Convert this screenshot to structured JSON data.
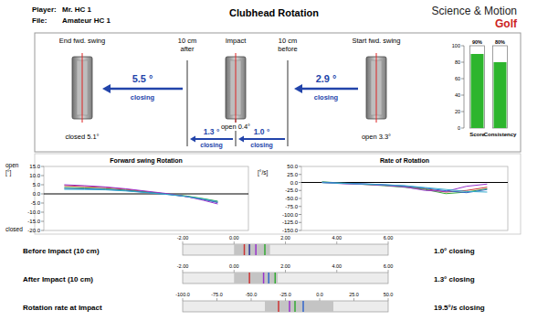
{
  "header": {
    "player_label": "Player:",
    "player": "Mr. HC 1",
    "file_label": "File:",
    "file": "Amateur HC 1",
    "title": "Clubhead Rotation",
    "brand": "Science & Motion",
    "brand_sub": "Golf"
  },
  "rotation_panel": {
    "stages": [
      {
        "label": [
          "End fwd. swing"
        ],
        "state": "closed 5.1°"
      },
      {
        "label": [
          "10 cm",
          "after"
        ]
      },
      {
        "label": [
          "Impact"
        ],
        "state": "open 0.4°"
      },
      {
        "label": [
          "10 cm",
          "before"
        ]
      },
      {
        "label": [
          "Start fwd. swing"
        ],
        "state": "open 3.3°"
      }
    ],
    "arrows": [
      {
        "value": "5.5 °",
        "text": "closing"
      },
      {
        "value": "2.9 °",
        "text": "closing"
      },
      {
        "value": "1.3 °",
        "text": "closing"
      },
      {
        "value": "1.0 °",
        "text": "closing"
      }
    ]
  },
  "chart_data": [
    {
      "type": "bar",
      "categories": [
        "Score",
        "Consistency"
      ],
      "values": [
        90,
        80
      ],
      "value_labels": [
        "90%",
        "80%"
      ],
      "data_labels": true,
      "color": "#2db52d",
      "ylim": [
        0,
        100
      ],
      "yticks": [
        0,
        20,
        40,
        60,
        80,
        100
      ]
    },
    {
      "type": "line",
      "title": "Forward swing Rotation",
      "y_label": "[°]",
      "annotations": [
        "open",
        "closed"
      ],
      "tick_labels": "y",
      "grid": false,
      "x": [
        1,
        2,
        3,
        4,
        5,
        6,
        7,
        7.8,
        8.5
      ],
      "xlim": [
        0,
        10
      ],
      "ylim": [
        -20,
        15
      ],
      "yticks": [
        {
          "value": 15,
          "label": "15.0"
        },
        {
          "value": 10,
          "label": "10.0"
        },
        {
          "value": 5,
          "label": "5.0"
        },
        {
          "value": 0,
          "label": "0.0"
        },
        {
          "value": -5,
          "label": "-5.0"
        },
        {
          "value": -10,
          "label": "-10.0"
        },
        {
          "value": -15,
          "label": "-15.0"
        },
        {
          "value": -20,
          "label": "-20.0"
        }
      ],
      "series": [
        {
          "color": "#cc3333",
          "values": [
            4.5,
            4,
            3.5,
            2.5,
            1.2,
            0,
            -1.5,
            -3,
            -4.5
          ]
        },
        {
          "color": "#33aa33",
          "values": [
            3.5,
            3.2,
            2.8,
            2,
            1,
            0,
            -1.2,
            -2.6,
            -4
          ]
        },
        {
          "color": "#9933cc",
          "values": [
            5,
            4.5,
            3.8,
            2.8,
            1.5,
            0.2,
            -1.5,
            -3.5,
            -5.5
          ]
        },
        {
          "color": "#3366cc",
          "values": [
            3,
            2.8,
            2.5,
            1.8,
            0.8,
            -0.2,
            -1.5,
            -3,
            -4.8
          ]
        },
        {
          "color": "#33aacc",
          "values": [
            2.5,
            2.4,
            2.2,
            1.6,
            0.7,
            -0.3,
            -1.4,
            -2.8,
            -4.2
          ]
        }
      ]
    },
    {
      "type": "line",
      "title": "Rate of Rotation",
      "y_label": "[°/s]",
      "tick_labels": "y",
      "grid": false,
      "x": [
        1,
        2,
        3,
        4,
        5,
        6,
        7,
        8,
        9
      ],
      "xlim": [
        0,
        10
      ],
      "ylim": [
        -150,
        50
      ],
      "yticks": [
        {
          "value": 50,
          "label": "50.0"
        },
        {
          "value": 25,
          "label": "25.0"
        },
        {
          "value": 0,
          "label": "0.0"
        },
        {
          "value": -25,
          "label": "-25.0"
        },
        {
          "value": -50,
          "label": "-50.0"
        },
        {
          "value": -75,
          "label": "-75.0"
        },
        {
          "value": -100,
          "label": "-100.0"
        },
        {
          "value": -125,
          "label": "-125.0"
        },
        {
          "value": -150,
          "label": "-150.0"
        }
      ],
      "series": [
        {
          "color": "#cc3333",
          "values": [
            0,
            -3,
            -5,
            -8,
            -12,
            -20,
            -30,
            -25,
            -15
          ]
        },
        {
          "color": "#33aa33",
          "values": [
            2,
            -2,
            -6,
            -10,
            -15,
            -22,
            -35,
            -30,
            -20
          ]
        },
        {
          "color": "#9933cc",
          "values": [
            0,
            -4,
            -6,
            -9,
            -14,
            -25,
            -28,
            -12,
            -5
          ]
        },
        {
          "color": "#3366cc",
          "values": [
            1,
            -2,
            -4,
            -7,
            -11,
            -18,
            -26,
            -32,
            -22
          ]
        },
        {
          "color": "#33aacc",
          "values": [
            -1,
            -3,
            -5,
            -7,
            -10,
            -16,
            -22,
            -28,
            -30
          ]
        }
      ]
    },
    {
      "type": "range",
      "title": "Before Impact (10 cm)",
      "summary": "1.0° closing",
      "xlim": [
        -2,
        6
      ],
      "xticks": [
        {
          "value": -2,
          "label": "-2.00"
        },
        {
          "value": 0,
          "label": "0.00"
        },
        {
          "value": 2,
          "label": "2.00"
        },
        {
          "value": 4,
          "label": "4.00"
        },
        {
          "value": 6,
          "label": "6.00"
        }
      ],
      "band": [
        0,
        1.4
      ],
      "values": [
        0.4,
        0.6,
        0.85,
        1.2
      ],
      "colors": [
        "#cc3333",
        "#333399",
        "#9933cc",
        "#33aa33"
      ]
    },
    {
      "type": "range",
      "title": "After Impact (10 cm)",
      "summary": "1.3° closing",
      "xlim": [
        -2,
        6
      ],
      "xticks": [
        {
          "value": -2,
          "label": "-2.00"
        },
        {
          "value": 0,
          "label": "0.00"
        },
        {
          "value": 2,
          "label": "2.00"
        },
        {
          "value": 4,
          "label": "4.00"
        },
        {
          "value": 6,
          "label": "6.00"
        }
      ],
      "band": [
        0,
        1.7
      ],
      "values": [
        0.6,
        1.15,
        1.35,
        1.6
      ],
      "colors": [
        "#cc3333",
        "#9933cc",
        "#3366cc",
        "#33aa33"
      ]
    },
    {
      "type": "range",
      "title": "Rotation rate at Impact",
      "summary": "19.5°/s closing",
      "xlim": [
        -100,
        50
      ],
      "xticks": [
        {
          "value": -100,
          "label": "-100.0"
        },
        {
          "value": -75,
          "label": "-75.0"
        },
        {
          "value": -50,
          "label": "-50.0"
        },
        {
          "value": -25,
          "label": "-25.0"
        },
        {
          "value": 0,
          "label": "0.0"
        },
        {
          "value": 25,
          "label": "25.0"
        },
        {
          "value": 50,
          "label": "50.0"
        }
      ],
      "band": [
        -40,
        10
      ],
      "values": [
        -30,
        -22,
        -18,
        -12
      ],
      "colors": [
        "#cc3333",
        "#9933cc",
        "#33aa33",
        "#3366cc"
      ]
    }
  ]
}
